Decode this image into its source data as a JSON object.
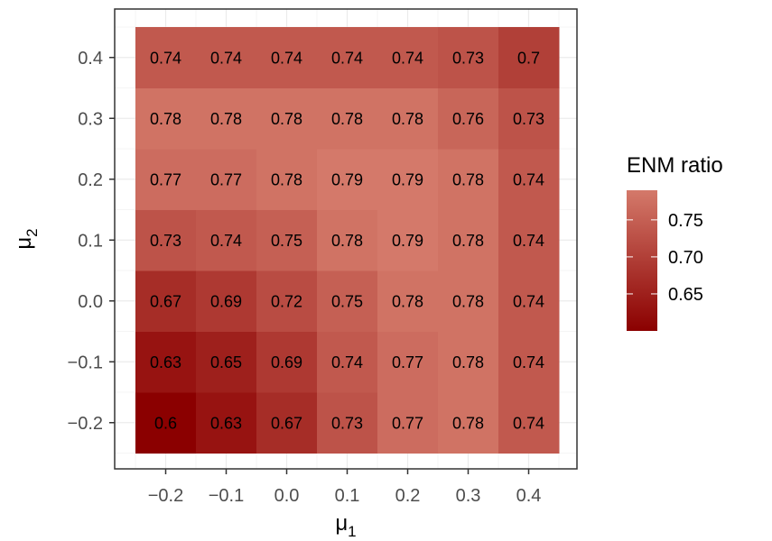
{
  "chart_data": {
    "type": "heatmap",
    "x_values": [
      "−0.2",
      "−0.1",
      "0.0",
      "0.1",
      "0.2",
      "0.3",
      "0.4"
    ],
    "y_values": [
      "−0.2",
      "−0.1",
      "0.0",
      "0.1",
      "0.2",
      "0.3",
      "0.4"
    ],
    "xlabel": "μ",
    "xlabel_sub": "1",
    "ylabel": "μ",
    "ylabel_sub": "2",
    "cells": [
      [
        "0.6",
        "0.63",
        "0.67",
        "0.73",
        "0.77",
        "0.78",
        "0.74"
      ],
      [
        "0.63",
        "0.65",
        "0.69",
        "0.74",
        "0.77",
        "0.78",
        "0.74"
      ],
      [
        "0.67",
        "0.69",
        "0.72",
        "0.75",
        "0.78",
        "0.78",
        "0.74"
      ],
      [
        "0.73",
        "0.74",
        "0.75",
        "0.78",
        "0.79",
        "0.78",
        "0.74"
      ],
      [
        "0.77",
        "0.77",
        "0.78",
        "0.79",
        "0.79",
        "0.78",
        "0.74"
      ],
      [
        "0.78",
        "0.78",
        "0.78",
        "0.78",
        "0.78",
        "0.76",
        "0.73"
      ],
      [
        "0.74",
        "0.74",
        "0.74",
        "0.74",
        "0.74",
        "0.73",
        "0.7"
      ]
    ],
    "legend": {
      "title": "ENM ratio",
      "breaks": [
        "0.75",
        "0.70",
        "0.65"
      ],
      "break_values": [
        0.75,
        0.7,
        0.65
      ],
      "range": [
        0.6,
        0.79
      ],
      "low_color": "#8b0000",
      "high_color": "#d4796a"
    },
    "grid": true,
    "panel_border": true
  }
}
